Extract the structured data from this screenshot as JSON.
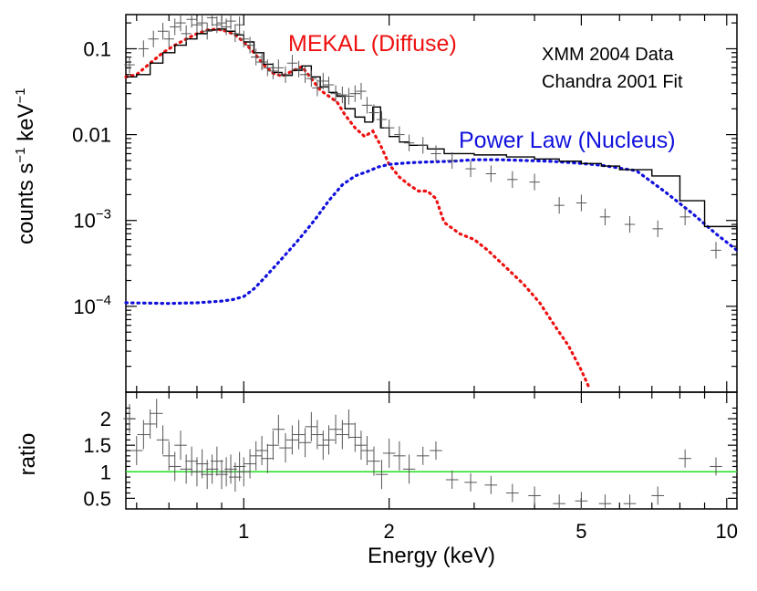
{
  "chart_data": [
    {
      "type": "line",
      "panel": "spectrum",
      "ylabel_main": "counts s",
      "ylabel_sup1": "−1",
      "ylabel_mid": " keV",
      "ylabel_sup2": "−1",
      "xlim": [
        0.57,
        10.5
      ],
      "ylim": [
        1e-05,
        0.25
      ],
      "xscale": "log",
      "yscale": "log",
      "y_ticks": [
        {
          "value": 0.1,
          "label": "0.1"
        },
        {
          "value": 0.01,
          "label": "0.01"
        },
        {
          "value": 0.001,
          "base": "10",
          "exp": "−3"
        },
        {
          "value": 0.0001,
          "base": "10",
          "exp": "−4"
        }
      ],
      "annotations": {
        "mekal": "MEKAL (Diffuse)",
        "mekal_color": "#ee1111",
        "powerlaw": "Power Law (Nucleus)",
        "powerlaw_color": "#1111dd",
        "dataset1": "XMM 2004 Data",
        "dataset2": "Chandra 2001 Fit"
      },
      "series": [
        {
          "name": "MEKAL (Diffuse)",
          "color": "#ee1111",
          "style": "dotted",
          "x": [
            0.57,
            0.6,
            0.64,
            0.68,
            0.72,
            0.76,
            0.8,
            0.84,
            0.88,
            0.92,
            0.96,
            1.0,
            1.05,
            1.1,
            1.15,
            1.2,
            1.26,
            1.32,
            1.38,
            1.44,
            1.5,
            1.56,
            1.62,
            1.7,
            1.78,
            1.85,
            1.92,
            2.0,
            2.1,
            2.2,
            2.3,
            2.4,
            2.5,
            2.6,
            2.8,
            3.0,
            3.2,
            3.5,
            3.8,
            4.1,
            4.4,
            4.7,
            5.0,
            5.2
          ],
          "y": [
            0.047,
            0.05,
            0.068,
            0.09,
            0.11,
            0.13,
            0.15,
            0.165,
            0.17,
            0.16,
            0.145,
            0.12,
            0.09,
            0.065,
            0.052,
            0.048,
            0.055,
            0.062,
            0.045,
            0.033,
            0.028,
            0.024,
            0.017,
            0.012,
            0.0095,
            0.011,
            0.0075,
            0.0045,
            0.0032,
            0.0026,
            0.0022,
            0.0022,
            0.0018,
            0.00095,
            0.0007,
            0.0006,
            0.00045,
            0.00028,
            0.00018,
            0.00011,
            6e-05,
            3.5e-05,
            1.8e-05,
            1.1e-05
          ]
        },
        {
          "name": "Power Law (Nucleus)",
          "color": "#1111dd",
          "style": "dotted",
          "x": [
            0.57,
            0.7,
            0.8,
            0.9,
            0.95,
            1.0,
            1.05,
            1.1,
            1.2,
            1.3,
            1.4,
            1.5,
            1.6,
            1.7,
            1.8,
            1.9,
            2.0,
            2.2,
            2.4,
            2.7,
            3.0,
            3.4,
            3.8,
            4.3,
            4.8,
            5.5,
            6.5,
            7.5,
            8.5,
            9.5,
            10.5
          ],
          "y": [
            0.00011,
            0.000108,
            0.00011,
            0.000115,
            0.00012,
            0.00013,
            0.00016,
            0.00021,
            0.00036,
            0.0006,
            0.001,
            0.0017,
            0.0026,
            0.0033,
            0.0037,
            0.0042,
            0.0045,
            0.0047,
            0.0048,
            0.0049,
            0.0051,
            0.0051,
            0.005,
            0.0049,
            0.0047,
            0.0044,
            0.0038,
            0.0021,
            0.0012,
            0.0007,
            0.00045
          ]
        },
        {
          "name": "model",
          "color": "#000000",
          "style": "step",
          "x": [
            0.57,
            0.6,
            0.64,
            0.68,
            0.72,
            0.76,
            0.8,
            0.84,
            0.88,
            0.92,
            0.96,
            1.0,
            1.05,
            1.1,
            1.15,
            1.2,
            1.26,
            1.32,
            1.38,
            1.44,
            1.5,
            1.56,
            1.62,
            1.7,
            1.78,
            1.85,
            1.92,
            2.0,
            2.1,
            2.2,
            2.4,
            2.6,
            3.0,
            3.5,
            4.0,
            4.5,
            5.0,
            5.5,
            6.0,
            7.0,
            8.0,
            9.0,
            10.5
          ],
          "y": [
            0.047,
            0.05,
            0.068,
            0.09,
            0.11,
            0.13,
            0.15,
            0.165,
            0.17,
            0.16,
            0.145,
            0.12,
            0.09,
            0.066,
            0.053,
            0.049,
            0.056,
            0.063,
            0.047,
            0.036,
            0.031,
            0.028,
            0.02,
            0.016,
            0.014,
            0.021,
            0.012,
            0.0095,
            0.0082,
            0.0075,
            0.0068,
            0.006,
            0.0058,
            0.0055,
            0.0052,
            0.0049,
            0.0046,
            0.0043,
            0.0039,
            0.0033,
            0.0017,
            0.00085,
            0.00045
          ]
        },
        {
          "name": "XMM 2004 Data",
          "color": "#555555",
          "style": "errorbars",
          "x": [
            0.58,
            0.62,
            0.65,
            0.68,
            0.7,
            0.72,
            0.74,
            0.76,
            0.78,
            0.8,
            0.82,
            0.84,
            0.86,
            0.88,
            0.9,
            0.92,
            0.94,
            0.96,
            0.98,
            1.0,
            1.03,
            1.06,
            1.09,
            1.12,
            1.15,
            1.18,
            1.22,
            1.26,
            1.3,
            1.34,
            1.38,
            1.42,
            1.46,
            1.5,
            1.55,
            1.6,
            1.65,
            1.7,
            1.75,
            1.8,
            1.86,
            1.93,
            2.0,
            2.1,
            2.2,
            2.35,
            2.5,
            2.7,
            2.95,
            3.25,
            3.6,
            4.0,
            4.5,
            5.0,
            5.6,
            6.3,
            7.2,
            8.2,
            9.5
          ],
          "y": [
            0.065,
            0.1,
            0.13,
            0.16,
            0.13,
            0.18,
            0.2,
            0.15,
            0.22,
            0.19,
            0.2,
            0.16,
            0.23,
            0.19,
            0.2,
            0.18,
            0.21,
            0.15,
            0.19,
            0.13,
            0.11,
            0.08,
            0.07,
            0.06,
            0.055,
            0.06,
            0.05,
            0.068,
            0.058,
            0.05,
            0.045,
            0.035,
            0.042,
            0.038,
            0.03,
            0.029,
            0.028,
            0.03,
            0.032,
            0.022,
            0.018,
            0.015,
            0.012,
            0.01,
            0.008,
            0.0075,
            0.006,
            0.005,
            0.004,
            0.0035,
            0.003,
            0.0028,
            0.0015,
            0.0016,
            0.0011,
            0.0009,
            0.0008,
            0.0011,
            0.00045
          ]
        }
      ]
    },
    {
      "type": "scatter",
      "panel": "ratio",
      "xlabel": "Energy (keV)",
      "ylabel": "ratio",
      "xlim": [
        0.57,
        10.5
      ],
      "ylim": [
        0.3,
        2.5
      ],
      "xscale": "log",
      "x_ticks": [
        {
          "value": 1,
          "label": "1"
        },
        {
          "value": 2,
          "label": "2"
        },
        {
          "value": 5,
          "label": "5"
        },
        {
          "value": 10,
          "label": "10"
        }
      ],
      "y_ticks": [
        {
          "value": 2,
          "label": "2"
        },
        {
          "value": 1.5,
          "label": "1.5"
        },
        {
          "value": 1,
          "label": "1"
        },
        {
          "value": 0.5,
          "label": "0.5"
        }
      ],
      "reference_line": {
        "value": 1,
        "color": "#22dd22"
      },
      "series": [
        {
          "name": "ratio",
          "color": "#555555",
          "x": [
            0.58,
            0.6,
            0.62,
            0.64,
            0.66,
            0.68,
            0.7,
            0.72,
            0.74,
            0.76,
            0.78,
            0.8,
            0.82,
            0.84,
            0.86,
            0.88,
            0.9,
            0.92,
            0.94,
            0.96,
            0.98,
            1.0,
            1.03,
            1.06,
            1.09,
            1.12,
            1.15,
            1.18,
            1.22,
            1.26,
            1.3,
            1.34,
            1.38,
            1.42,
            1.46,
            1.5,
            1.55,
            1.6,
            1.65,
            1.7,
            1.75,
            1.8,
            1.86,
            1.93,
            2.0,
            2.1,
            2.2,
            2.35,
            2.5,
            2.7,
            2.95,
            3.25,
            3.6,
            4.0,
            4.5,
            5.0,
            5.6,
            6.3,
            7.2,
            8.2,
            9.5
          ],
          "y": [
            2.0,
            1.4,
            1.7,
            1.9,
            2.1,
            1.6,
            1.3,
            1.1,
            1.5,
            1.05,
            1.2,
            1.0,
            1.15,
            0.95,
            1.05,
            1.2,
            0.95,
            1.0,
            1.05,
            0.9,
            1.1,
            1.0,
            1.15,
            1.3,
            1.4,
            1.25,
            1.5,
            1.8,
            1.45,
            1.6,
            1.7,
            1.55,
            1.85,
            1.7,
            1.5,
            1.6,
            1.8,
            1.7,
            1.9,
            1.65,
            1.5,
            1.4,
            1.2,
            0.95,
            1.35,
            1.3,
            1.05,
            1.3,
            1.4,
            0.85,
            0.8,
            0.75,
            0.6,
            0.55,
            0.4,
            0.45,
            0.4,
            0.4,
            0.55,
            1.25,
            1.1
          ]
        }
      ]
    }
  ]
}
